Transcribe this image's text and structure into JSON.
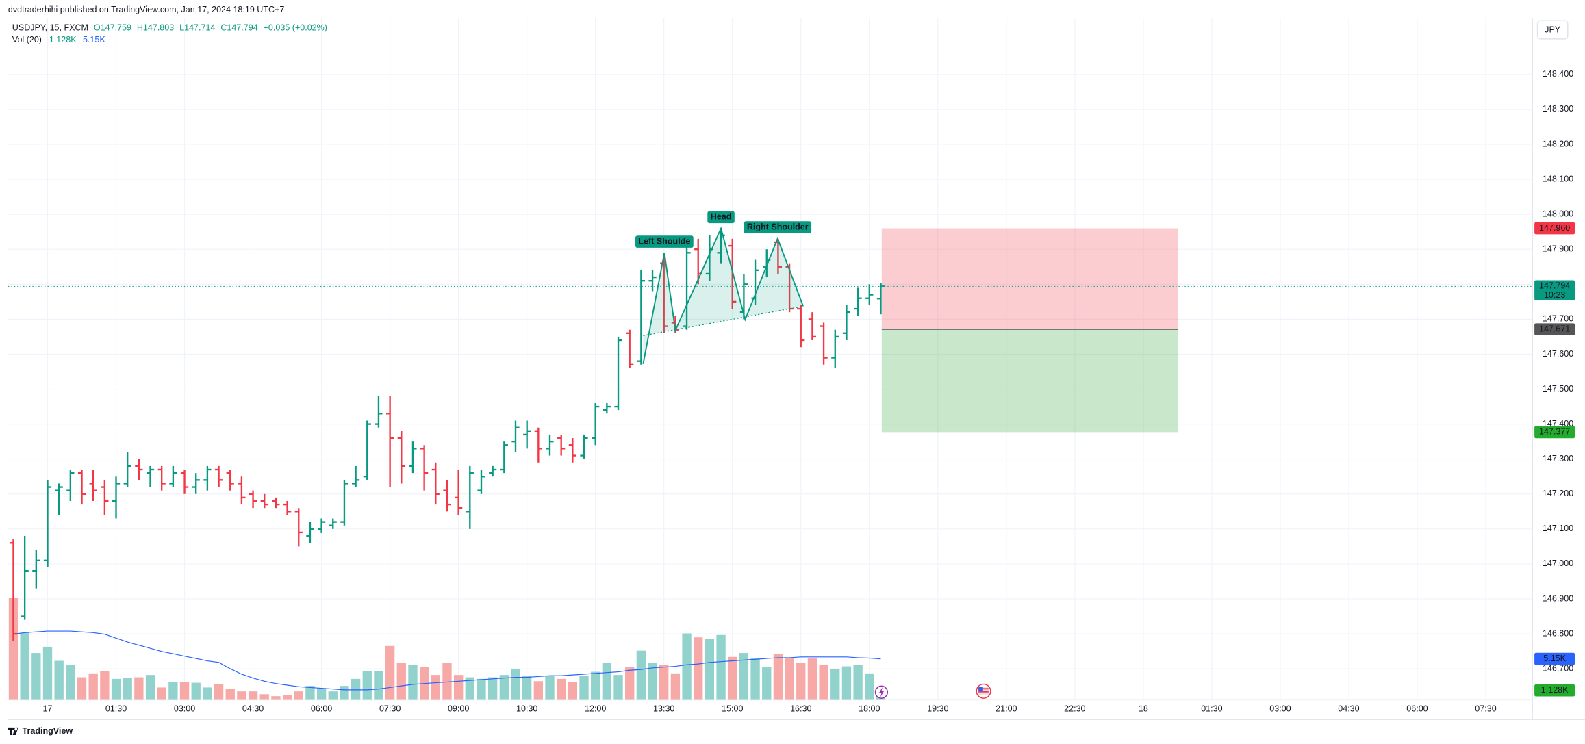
{
  "header": {
    "publisher": "dvdtraderhihi published on TradingView.com, Jan 17, 2024 18:19 UTC+7",
    "symbol": "USDJPY, 15, FXCM",
    "ohlc": [
      "O147.759",
      "H147.803",
      "L147.714",
      "C147.794"
    ],
    "change": "+0.035 (+0.02%)"
  },
  "currency_button": "JPY",
  "footer": {
    "brand": "TradingView"
  },
  "chart_data": {
    "type": "ohlc",
    "x": [
      -0.75,
      -0.5,
      -0.25,
      0,
      0.25,
      0.5,
      0.75,
      1,
      1.25,
      1.5,
      1.75,
      2,
      2.25,
      2.5,
      2.75,
      3,
      3.25,
      3.5,
      3.75,
      4,
      4.25,
      4.5,
      4.75,
      5,
      5.25,
      5.5,
      5.75,
      6,
      6.25,
      6.5,
      6.75,
      7,
      7.25,
      7.5,
      7.75,
      8,
      8.25,
      8.5,
      8.75,
      9,
      9.25,
      9.5,
      9.75,
      10,
      10.25,
      10.5,
      10.75,
      11,
      11.25,
      11.5,
      11.75,
      12,
      12.25,
      12.5,
      12.75,
      13,
      13.25,
      13.5,
      13.75,
      14,
      14.25,
      14.5,
      14.75,
      15,
      15.25,
      15.5,
      15.75,
      16,
      16.25,
      16.5,
      16.75,
      17,
      17.25,
      17.5,
      17.75,
      18,
      18.25
    ],
    "open": [
      147.06,
      146.85,
      146.98,
      147.01,
      147.21,
      147.21,
      147.26,
      147.23,
      147.22,
      147.18,
      147.23,
      147.28,
      147.26,
      147.27,
      147.23,
      147.26,
      147.22,
      147.24,
      147.27,
      147.26,
      147.23,
      147.2,
      147.18,
      147.18,
      147.17,
      147.15,
      147.08,
      147.1,
      147.11,
      147.12,
      147.23,
      147.25,
      147.4,
      147.43,
      147.36,
      147.28,
      147.33,
      147.27,
      147.21,
      147.19,
      147.15,
      147.21,
      147.26,
      147.27,
      147.35,
      147.37,
      147.38,
      147.33,
      147.36,
      147.34,
      147.31,
      147.36,
      147.44,
      147.45,
      147.66,
      147.58,
      147.81,
      147.86,
      147.69,
      147.68,
      147.9,
      147.83,
      147.89,
      147.91,
      147.72,
      147.76,
      147.85,
      147.92,
      147.85,
      147.73,
      147.7,
      147.68,
      147.59,
      147.66,
      147.73,
      147.76,
      147.759
    ],
    "high": [
      147.07,
      147.08,
      147.04,
      147.24,
      147.23,
      147.27,
      147.27,
      147.27,
      147.24,
      147.25,
      147.32,
      147.3,
      147.28,
      147.28,
      147.28,
      147.27,
      147.26,
      147.28,
      147.28,
      147.27,
      147.25,
      147.21,
      147.2,
      147.19,
      147.18,
      147.16,
      147.12,
      147.13,
      147.13,
      147.24,
      147.28,
      147.41,
      147.48,
      147.48,
      147.38,
      147.35,
      147.34,
      147.29,
      147.24,
      147.27,
      147.28,
      147.27,
      147.28,
      147.35,
      147.41,
      147.41,
      147.39,
      147.37,
      147.37,
      147.36,
      147.37,
      147.46,
      147.46,
      147.65,
      147.67,
      147.84,
      147.84,
      147.89,
      147.71,
      147.91,
      147.93,
      147.94,
      147.96,
      147.93,
      147.83,
      147.87,
      147.9,
      147.93,
      147.86,
      147.74,
      147.72,
      147.69,
      147.67,
      147.74,
      147.79,
      147.8,
      147.803
    ],
    "low": [
      146.78,
      146.84,
      146.93,
      146.99,
      147.14,
      147.18,
      147.17,
      147.18,
      147.14,
      147.13,
      147.22,
      147.24,
      147.22,
      147.21,
      147.22,
      147.2,
      147.2,
      147.21,
      147.22,
      147.21,
      147.17,
      147.16,
      147.16,
      147.16,
      147.14,
      147.05,
      147.06,
      147.09,
      147.1,
      147.11,
      147.22,
      147.24,
      147.39,
      147.22,
      147.23,
      147.26,
      147.21,
      147.17,
      147.15,
      147.14,
      147.1,
      147.2,
      147.25,
      147.26,
      147.32,
      147.33,
      147.29,
      147.31,
      147.31,
      147.29,
      147.3,
      147.34,
      147.43,
      147.44,
      147.56,
      147.57,
      147.78,
      147.66,
      147.66,
      147.67,
      147.8,
      147.81,
      147.86,
      147.73,
      147.7,
      147.74,
      147.82,
      147.83,
      147.72,
      147.62,
      147.64,
      147.57,
      147.56,
      147.64,
      147.71,
      147.74,
      147.714
    ],
    "close": [
      146.8,
      146.98,
      147.01,
      147.22,
      147.22,
      147.26,
      147.2,
      147.21,
      147.18,
      147.23,
      147.28,
      147.27,
      147.27,
      147.23,
      147.26,
      147.22,
      147.24,
      147.27,
      147.24,
      147.23,
      147.19,
      147.18,
      147.17,
      147.17,
      147.15,
      147.09,
      147.1,
      147.12,
      147.12,
      147.23,
      147.24,
      147.4,
      147.43,
      147.36,
      147.28,
      147.33,
      147.26,
      147.2,
      147.17,
      147.16,
      147.26,
      147.25,
      147.27,
      147.34,
      147.39,
      147.38,
      147.33,
      147.35,
      147.33,
      147.31,
      147.36,
      147.45,
      147.45,
      147.64,
      147.57,
      147.81,
      147.82,
      147.68,
      147.67,
      147.89,
      147.83,
      147.9,
      147.94,
      147.75,
      147.8,
      147.84,
      147.87,
      147.85,
      147.73,
      147.64,
      147.65,
      147.59,
      147.65,
      147.72,
      147.76,
      147.77,
      147.794
    ],
    "up_color": "#089981",
    "down_color": "#f23645",
    "xlim": [
      -0.864,
      32.5
    ],
    "xticks": [
      {
        "value": 0,
        "label": "17"
      },
      {
        "value": 1.5,
        "label": "01:30"
      },
      {
        "value": 3,
        "label": "03:00"
      },
      {
        "value": 4.5,
        "label": "04:30"
      },
      {
        "value": 6,
        "label": "06:00"
      },
      {
        "value": 7.5,
        "label": "07:30"
      },
      {
        "value": 9,
        "label": "09:00"
      },
      {
        "value": 10.5,
        "label": "10:30"
      },
      {
        "value": 12,
        "label": "12:00"
      },
      {
        "value": 13.5,
        "label": "13:30"
      },
      {
        "value": 15,
        "label": "15:00"
      },
      {
        "value": 16.5,
        "label": "16:30"
      },
      {
        "value": 18,
        "label": "18:00"
      },
      {
        "value": 19.5,
        "label": "19:30"
      },
      {
        "value": 21,
        "label": "21:00"
      },
      {
        "value": 22.5,
        "label": "22:30"
      },
      {
        "value": 24,
        "label": "18"
      },
      {
        "value": 25.5,
        "label": "01:30"
      },
      {
        "value": 27,
        "label": "03:00"
      },
      {
        "value": 28.5,
        "label": "04:30"
      },
      {
        "value": 30,
        "label": "06:00"
      },
      {
        "value": 31.5,
        "label": "07:30"
      }
    ],
    "ylim": [
      146.613,
      148.561
    ],
    "yticks": [
      {
        "value": 146.7,
        "label": "146.700"
      },
      {
        "value": 146.8,
        "label": "146.800"
      },
      {
        "value": 146.9,
        "label": "146.900"
      },
      {
        "value": 147,
        "label": "147.000"
      },
      {
        "value": 147.1,
        "label": "147.100"
      },
      {
        "value": 147.2,
        "label": "147.200"
      },
      {
        "value": 147.3,
        "label": "147.300"
      },
      {
        "value": 147.4,
        "label": "147.400"
      },
      {
        "value": 147.5,
        "label": "147.500"
      },
      {
        "value": 147.6,
        "label": "147.600"
      },
      {
        "value": 147.7,
        "label": "147.700"
      },
      {
        "value": 147.8,
        "label": "147.800"
      },
      {
        "value": 147.9,
        "label": "147.900"
      },
      {
        "value": 148,
        "label": "148.000"
      },
      {
        "value": 148.1,
        "label": "148.100"
      },
      {
        "value": 148.2,
        "label": "148.200"
      },
      {
        "value": 148.3,
        "label": "148.300"
      },
      {
        "value": 148.4,
        "label": "148.400"
      }
    ],
    "grid": true,
    "volume": {
      "name": "Vol (20)",
      "values": [
        12900,
        8500,
        5900,
        6700,
        4900,
        4400,
        2800,
        3300,
        3600,
        2600,
        2700,
        2800,
        3100,
        1500,
        2200,
        2200,
        2100,
        1500,
        1900,
        1300,
        1000,
        1000,
        640,
        390,
        520,
        1000,
        1700,
        1400,
        1000,
        1700,
        2600,
        3600,
        3600,
        6800,
        4600,
        4400,
        4100,
        3100,
        4600,
        3100,
        2800,
        2600,
        2800,
        3100,
        3900,
        3000,
        2300,
        3000,
        2600,
        2200,
        3000,
        3500,
        4600,
        3100,
        4100,
        6200,
        4600,
        4400,
        3300,
        8400,
        7900,
        7700,
        8200,
        5400,
        5900,
        5200,
        4100,
        5800,
        5200,
        4600,
        5200,
        4400,
        3900,
        4200,
        4400,
        3300,
        1128
      ],
      "ma": [
        8300,
        8500,
        8600,
        8700,
        8700,
        8700,
        8600,
        8500,
        8300,
        7800,
        7300,
        6900,
        6500,
        6100,
        5800,
        5500,
        5200,
        4900,
        4700,
        3900,
        3200,
        2700,
        2300,
        2000,
        1800,
        1600,
        1500,
        1400,
        1300,
        1200,
        1200,
        1200,
        1300,
        1500,
        1700,
        1900,
        2000,
        2100,
        2200,
        2300,
        2400,
        2500,
        2600,
        2700,
        2800,
        2800,
        2900,
        3000,
        3000,
        3100,
        3200,
        3300,
        3400,
        3500,
        3700,
        3800,
        4000,
        4100,
        4200,
        4400,
        4500,
        4700,
        4800,
        4900,
        5000,
        5100,
        5200,
        5300,
        5300,
        5400,
        5400,
        5400,
        5400,
        5400,
        5300,
        5250,
        5150
      ],
      "value_label": "1.128K",
      "ma_label": "5.15K",
      "up_color": "#92d2cc",
      "down_color": "#f7a9a7",
      "ma_color": "#2962ff"
    },
    "current_price": {
      "value": 147.794,
      "countdown": "10:23",
      "color": "#089981"
    },
    "position": {
      "x": [
        18.27,
        24.76
      ],
      "entry": 147.671,
      "stop": {
        "value": 147.96,
        "label": "147.960"
      },
      "target": 147.377,
      "stop_color": "#f23645",
      "target_color": "#22ab94",
      "entry_color": "#555555"
    },
    "pattern": {
      "labels": [
        "Left Shoulde",
        "Head",
        "Right Shoulder"
      ],
      "x": [
        13.045,
        13.51,
        13.75,
        14.75,
        15.28,
        15.99,
        16.55
      ],
      "y": [
        147.572,
        147.89,
        147.668,
        147.96,
        147.699,
        147.931,
        147.737
      ],
      "neckline": {
        "x": [
          13.045,
          16.55
        ],
        "y": [
          147.653,
          147.737
        ]
      },
      "color": "#089981"
    }
  }
}
